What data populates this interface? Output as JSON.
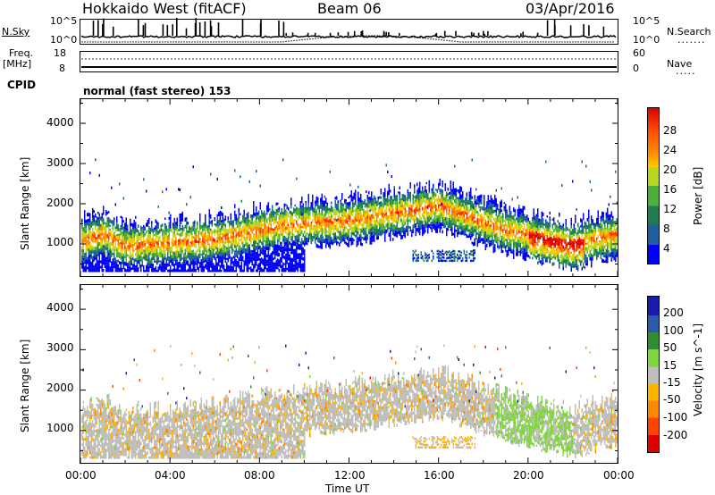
{
  "header": {
    "title": "Hokkaido West (fitACF)",
    "beam": "Beam 06",
    "date": "03/Apr/2016"
  },
  "top_panel": {
    "left_label": "N.Sky",
    "right_label": "N.Search",
    "left_ticks": [
      "10^5",
      "10^0"
    ],
    "right_ticks": [
      "10^5",
      "10^0"
    ]
  },
  "freq_panel": {
    "left_label_line1": "Freq.",
    "left_label_line2": "[MHz]",
    "right_label": "Nave",
    "left_ticks": [
      "18",
      "8"
    ],
    "right_ticks": [
      "60",
      "0"
    ]
  },
  "cpid": {
    "label": "CPID",
    "text": "normal (fast stereo) 153"
  },
  "colors": {
    "power": [
      "#0000ff",
      "#1f5fa0",
      "#1e7d50",
      "#4db038",
      "#b8d820",
      "#ffcc00",
      "#ff8800",
      "#ff3300",
      "#e00000"
    ],
    "velocity": [
      "#e00000",
      "#ff4400",
      "#ff8800",
      "#ffb400",
      "#bebebe",
      "#7fd63a",
      "#2f8e2f",
      "#2a5aa8",
      "#1a1aaa"
    ]
  },
  "chart_data": [
    {
      "type": "heatmap",
      "name": "power",
      "ylabel": "Slant Range [km]",
      "yticks": [
        "1000",
        "2000",
        "3000",
        "4000"
      ],
      "ylim": [
        200,
        4600
      ],
      "xlim": [
        "00:00",
        "24:00"
      ],
      "colorbar_label": "Power [dB]",
      "colorbar_ticks": [
        "4",
        "8",
        "12",
        "16",
        "20",
        "24",
        "28"
      ],
      "colorbar_range": [
        0,
        32
      ]
    },
    {
      "type": "heatmap",
      "name": "velocity",
      "ylabel": "Slant Range [km]",
      "yticks": [
        "1000",
        "2000",
        "3000",
        "4000"
      ],
      "ylim": [
        200,
        4600
      ],
      "xlim": [
        "00:00",
        "24:00"
      ],
      "colorbar_label": "Velocity [m s^-1]",
      "colorbar_ticks": [
        "-200",
        "-100",
        "-50",
        "-15",
        "15",
        "50",
        "100",
        "200"
      ],
      "xlabel": "Time UT",
      "xticks": [
        "00:00",
        "04:00",
        "08:00",
        "12:00",
        "16:00",
        "20:00",
        "00:00"
      ]
    }
  ]
}
